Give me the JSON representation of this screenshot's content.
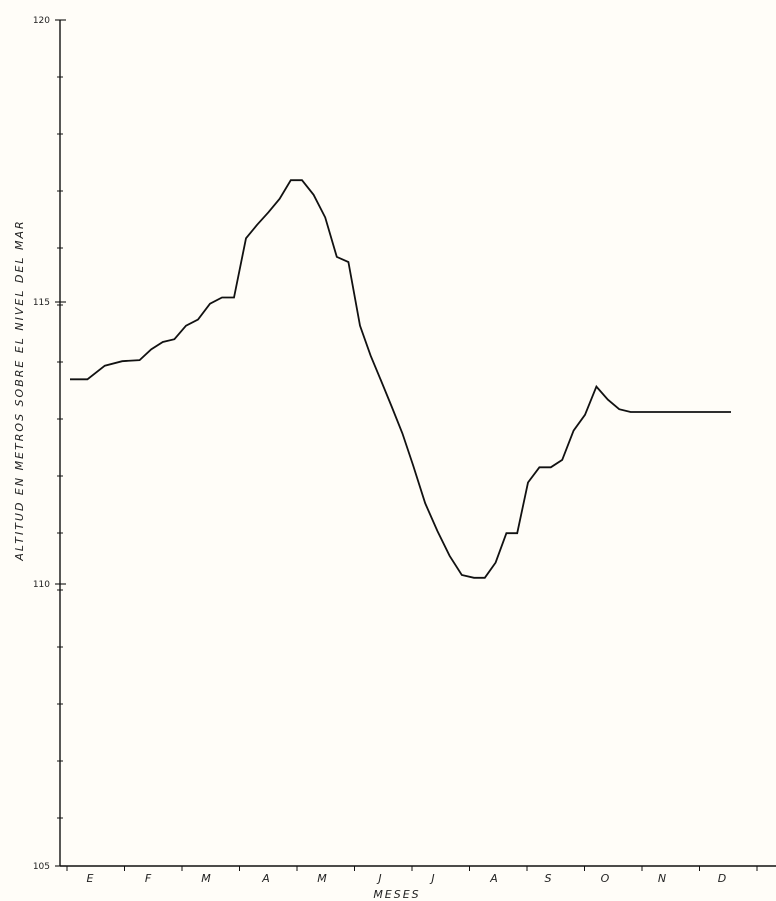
{
  "chart_data": {
    "type": "line",
    "title": "",
    "xlabel": "MESES",
    "ylabel": "ALTITUD EN METROS SOBRE EL NIVEL DEL MAR",
    "categories": [
      "E",
      "F",
      "M",
      "A",
      "M",
      "J",
      "J",
      "A",
      "S",
      "O",
      "N",
      "D"
    ],
    "yticks": [
      "120",
      "115",
      "110",
      "105"
    ],
    "ylim": [
      105,
      120
    ],
    "grid": false,
    "series": [
      {
        "x": [
          0.0,
          0.3,
          0.6,
          0.9,
          1.2,
          1.4,
          1.6,
          1.8,
          2.0,
          2.2,
          2.4,
          2.6,
          2.8,
          3.0,
          3.2,
          3.4,
          3.6,
          3.8,
          4.0,
          4.2,
          4.4,
          4.6,
          4.8,
          5.0,
          5.2,
          5.4,
          5.6,
          5.8,
          6.0,
          6.2,
          6.4,
          6.6,
          6.8,
          7.0,
          7.2,
          7.4,
          7.6,
          7.8,
          8.0,
          8.2,
          8.4,
          8.6,
          8.8,
          9.0,
          9.2,
          9.4,
          9.6,
          9.8,
          10.0,
          10.2,
          10.4,
          10.6,
          10.8,
          11.0,
          11.3,
          11.5
        ],
        "values": [
          113.63,
          113.63,
          113.87,
          113.95,
          113.97,
          114.16,
          114.29,
          114.34,
          114.58,
          114.69,
          114.97,
          115.08,
          115.08,
          116.13,
          116.37,
          116.59,
          116.83,
          117.16,
          117.16,
          116.9,
          116.5,
          115.8,
          115.71,
          114.58,
          114.05,
          113.6,
          113.14,
          112.67,
          112.11,
          111.43,
          110.94,
          110.5,
          110.16,
          110.11,
          110.11,
          110.38,
          110.9,
          110.9,
          111.8,
          112.07,
          112.07,
          112.2,
          112.72,
          113.0,
          113.5,
          113.27,
          113.1,
          113.05,
          113.05,
          113.05,
          113.05,
          113.05,
          113.05,
          113.05,
          113.05,
          113.05
        ]
      }
    ]
  }
}
